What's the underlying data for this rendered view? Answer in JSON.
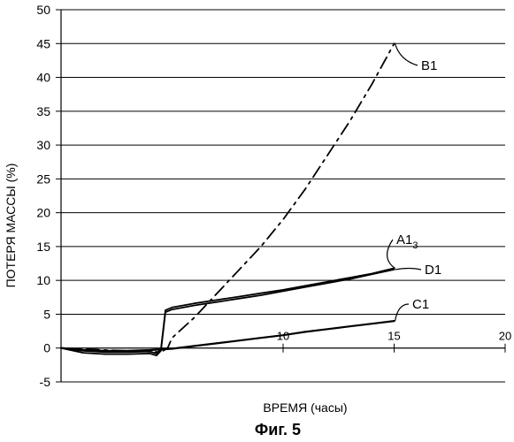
{
  "chart_data": {
    "type": "line",
    "caption": "Фиг. 5",
    "xlabel": "ВРЕМЯ (часы)",
    "ylabel": "ПОТЕРЯ МАССЫ (%)",
    "xlim": [
      0,
      20
    ],
    "ylim": [
      -5,
      50
    ],
    "xticks": [
      10,
      15,
      20
    ],
    "yticks": [
      -5,
      0,
      5,
      10,
      15,
      20,
      25,
      30,
      35,
      40,
      45,
      50
    ],
    "grid": "horizontal",
    "series": [
      {
        "name": "B1",
        "style": "dashed",
        "x": [
          0,
          2,
          4.5,
          4.8,
          5.0,
          6,
          7,
          8,
          9,
          10,
          11,
          12,
          13,
          14,
          15
        ],
        "y": [
          0,
          -0.3,
          -0.6,
          0,
          1.5,
          4.5,
          8,
          11.5,
          15,
          19,
          23.5,
          28.5,
          33.5,
          39,
          45
        ]
      },
      {
        "name": "A1",
        "label_sub": "3",
        "style": "solid",
        "x": [
          0,
          1,
          2,
          3,
          4,
          4.3,
          4.5,
          4.7,
          5,
          6,
          7,
          8,
          9,
          10,
          11,
          12,
          13,
          14,
          15
        ],
        "y": [
          0,
          -0.4,
          -0.6,
          -0.6,
          -0.5,
          -0.8,
          -0.2,
          5.6,
          6.0,
          6.6,
          7.1,
          7.6,
          8.1,
          8.6,
          9.2,
          9.8,
          10.4,
          11.0,
          11.8
        ]
      },
      {
        "name": "D1",
        "style": "solid",
        "x": [
          0,
          1,
          2,
          3,
          4,
          4.3,
          4.5,
          4.7,
          5,
          6,
          7,
          8,
          9,
          10,
          11,
          12,
          13,
          14,
          15
        ],
        "y": [
          0,
          -0.7,
          -0.9,
          -0.9,
          -0.8,
          -1.1,
          -0.4,
          5.3,
          5.7,
          6.3,
          6.8,
          7.3,
          7.8,
          8.4,
          9.0,
          9.6,
          10.2,
          10.9,
          11.6
        ]
      },
      {
        "name": "C1",
        "style": "solid",
        "x": [
          0,
          1,
          2,
          3,
          4,
          5,
          6,
          7,
          8,
          9,
          10,
          11,
          12,
          13,
          14,
          15
        ],
        "y": [
          0,
          -0.3,
          -0.4,
          -0.4,
          -0.3,
          -0.1,
          0.3,
          0.7,
          1.1,
          1.5,
          1.9,
          2.4,
          2.8,
          3.2,
          3.6,
          4.0
        ]
      }
    ]
  }
}
